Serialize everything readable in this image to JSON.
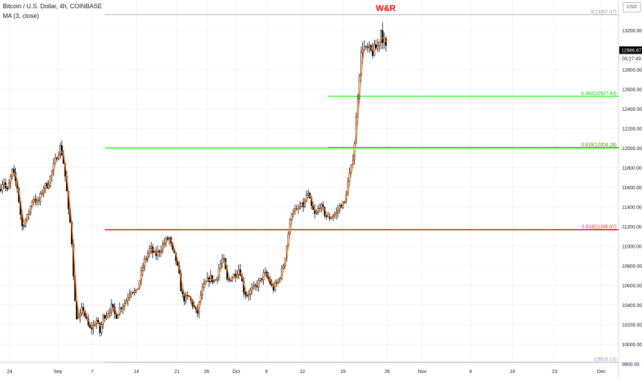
{
  "header": {
    "title": "Bitcoin / U.S. Dollar, 4h, COINBASE",
    "indicator": "MA (3, close)",
    "currency_button": "USD"
  },
  "colors": {
    "candle_body": "#ffffff",
    "candle_outline": "#000000",
    "ma_line": "#ff6d00",
    "level_green": "#00ff00",
    "level_red": "#ff0000",
    "level_grey": "#b2b5be",
    "annotation_red": "#ff0000",
    "price_label_dark": "#000000"
  },
  "chart_data": {
    "type": "candlestick",
    "symbol": "Bitcoin / U.S. Dollar",
    "interval": "4h",
    "exchange": "COINBASE",
    "ylim": [
      9800,
      13380
    ],
    "y_ticks": [
      "9800.00",
      "10000.00",
      "10200.00",
      "10400.00",
      "10600.00",
      "10800.00",
      "11000.00",
      "11200.00",
      "11400.00",
      "11600.00",
      "11800.00",
      "12000.00",
      "12200.00",
      "12400.00",
      "12600.00",
      "12800.00",
      "13200.00"
    ],
    "x_ticks": [
      "24",
      "Sep",
      "7",
      "14",
      "21",
      "26",
      "Oct",
      "6",
      "12",
      "19",
      "26",
      "Nov",
      "9",
      "16",
      "23",
      "Dec"
    ],
    "grid": true,
    "last_price": "12986.87",
    "countdown": "03:27:49",
    "annotation": "W&R",
    "fib_levels": [
      {
        "label": "0(13357.57)",
        "price": 13357.57,
        "color": "grey"
      },
      {
        "label": "0.382(12527.43)",
        "price": 12527.43,
        "color": "green"
      },
      {
        "label": "0.618(12004.29)",
        "price": 12004.29,
        "color": "darkred"
      },
      {
        "label": "0.618(11166.97)",
        "price": 11166.97,
        "color": "red"
      },
      {
        "label": "1(9816.13)",
        "price": 9816.13,
        "color": "grey"
      }
    ],
    "price_path": [
      [
        0,
        11580
      ],
      [
        5,
        11680
      ],
      [
        10,
        11540
      ],
      [
        18,
        11770
      ],
      [
        25,
        11600
      ],
      [
        32,
        11200
      ],
      [
        40,
        11300
      ],
      [
        48,
        11500
      ],
      [
        55,
        11430
      ],
      [
        63,
        11600
      ],
      [
        70,
        11630
      ],
      [
        77,
        11800
      ],
      [
        83,
        11930
      ],
      [
        88,
        12020
      ],
      [
        93,
        11820
      ],
      [
        97,
        11550
      ],
      [
        100,
        11300
      ],
      [
        103,
        11200
      ],
      [
        106,
        10800
      ],
      [
        110,
        10300
      ],
      [
        115,
        10250
      ],
      [
        120,
        10380
      ],
      [
        125,
        10250
      ],
      [
        130,
        10150
      ],
      [
        135,
        10180
      ],
      [
        140,
        10250
      ],
      [
        145,
        10120
      ],
      [
        150,
        10280
      ],
      [
        156,
        10320
      ],
      [
        162,
        10380
      ],
      [
        168,
        10280
      ],
      [
        175,
        10380
      ],
      [
        182,
        10430
      ],
      [
        190,
        10560
      ],
      [
        198,
        10520
      ],
      [
        205,
        10720
      ],
      [
        210,
        10850
      ],
      [
        218,
        10980
      ],
      [
        225,
        10900
      ],
      [
        232,
        10960
      ],
      [
        240,
        11050
      ],
      [
        246,
        11080
      ],
      [
        250,
        10950
      ],
      [
        255,
        10870
      ],
      [
        260,
        10700
      ],
      [
        264,
        10500
      ],
      [
        268,
        10460
      ],
      [
        274,
        10480
      ],
      [
        280,
        10400
      ],
      [
        286,
        10300
      ],
      [
        292,
        10520
      ],
      [
        298,
        10620
      ],
      [
        305,
        10680
      ],
      [
        312,
        10630
      ],
      [
        318,
        10780
      ],
      [
        324,
        10880
      ],
      [
        330,
        10640
      ],
      [
        336,
        10680
      ],
      [
        342,
        10720
      ],
      [
        348,
        10780
      ],
      [
        353,
        10560
      ],
      [
        358,
        10500
      ],
      [
        364,
        10540
      ],
      [
        370,
        10580
      ],
      [
        377,
        10640
      ],
      [
        384,
        10720
      ],
      [
        390,
        10660
      ],
      [
        396,
        10560
      ],
      [
        402,
        10620
      ],
      [
        408,
        10720
      ],
      [
        412,
        10820
      ],
      [
        416,
        11000
      ],
      [
        420,
        11200
      ],
      [
        424,
        11380
      ],
      [
        430,
        11350
      ],
      [
        436,
        11400
      ],
      [
        442,
        11420
      ],
      [
        446,
        11550
      ],
      [
        452,
        11400
      ],
      [
        458,
        11300
      ],
      [
        464,
        11420
      ],
      [
        470,
        11350
      ],
      [
        476,
        11280
      ],
      [
        482,
        11310
      ],
      [
        488,
        11330
      ],
      [
        494,
        11420
      ],
      [
        500,
        11430
      ],
      [
        505,
        11650
      ],
      [
        510,
        11800
      ],
      [
        514,
        12000
      ],
      [
        517,
        12300
      ],
      [
        520,
        12600
      ],
      [
        523,
        12900
      ],
      [
        527,
        13050
      ],
      [
        531,
        12990
      ],
      [
        535,
        13000
      ],
      [
        540,
        12970
      ],
      [
        546,
        13020
      ],
      [
        550,
        13050
      ],
      [
        552,
        13260
      ],
      [
        554,
        13150
      ],
      [
        557,
        13100
      ],
      [
        559,
        13030
      ],
      [
        561,
        12990
      ]
    ]
  }
}
